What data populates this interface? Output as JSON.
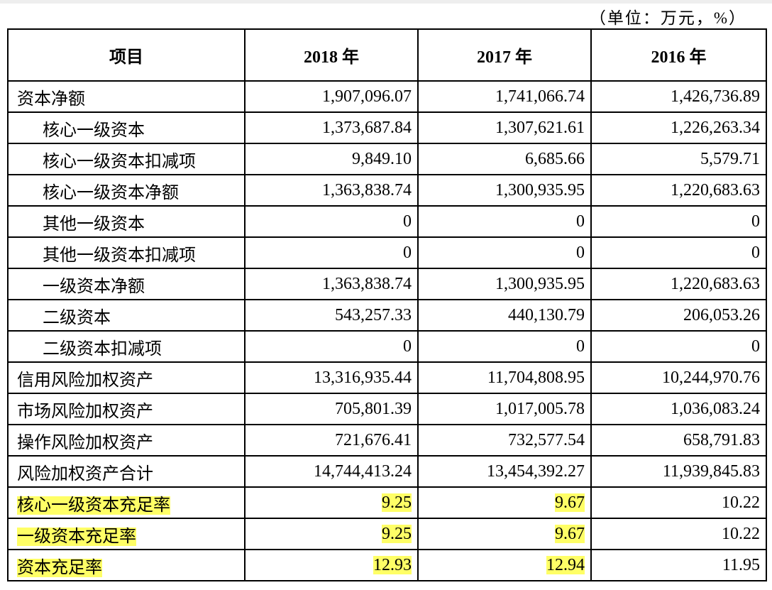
{
  "unit": "（单位：万元，%）",
  "table": {
    "header": [
      "项目",
      "2018 年",
      "2017 年",
      "2016 年"
    ],
    "rows": [
      {
        "cells": [
          "资本净额",
          "1,907,096.07",
          "1,741,066.74",
          "1,426,736.89"
        ],
        "level": 0
      },
      {
        "cells": [
          "核心一级资本",
          "1,373,687.84",
          "1,307,621.61",
          "1,226,263.34"
        ],
        "level": 1
      },
      {
        "cells": [
          "核心一级资本扣减项",
          "9,849.10",
          "6,685.66",
          "5,579.71"
        ],
        "level": 1
      },
      {
        "cells": [
          "核心一级资本净额",
          "1,363,838.74",
          "1,300,935.95",
          "1,220,683.63"
        ],
        "level": 1
      },
      {
        "cells": [
          "其他一级资本",
          "0",
          "0",
          "0"
        ],
        "level": 1
      },
      {
        "cells": [
          "其他一级资本扣减项",
          "0",
          "0",
          "0"
        ],
        "level": 1
      },
      {
        "cells": [
          "一级资本净额",
          "1,363,838.74",
          "1,300,935.95",
          "1,220,683.63"
        ],
        "level": 1
      },
      {
        "cells": [
          "二级资本",
          "543,257.33",
          "440,130.79",
          "206,053.26"
        ],
        "level": 1
      },
      {
        "cells": [
          "二级资本扣减项",
          "0",
          "0",
          "0"
        ],
        "level": 1
      },
      {
        "cells": [
          "信用风险加权资产",
          "13,316,935.44",
          "11,704,808.95",
          "10,244,970.76"
        ],
        "level": 0
      },
      {
        "cells": [
          "市场风险加权资产",
          "705,801.39",
          "1,017,005.78",
          "1,036,083.24"
        ],
        "level": 0
      },
      {
        "cells": [
          "操作风险加权资产",
          "721,676.41",
          "732,577.54",
          "658,791.83"
        ],
        "level": 0
      },
      {
        "cells": [
          "风险加权资产合计",
          "14,744,413.24",
          "13,454,392.27",
          "11,939,845.83"
        ],
        "level": 0
      },
      {
        "cells": [
          "核心一级资本充足率",
          "9.25",
          "9.67",
          "10.22"
        ],
        "level": 0,
        "highlight": [
          true,
          true,
          true,
          false
        ]
      },
      {
        "cells": [
          "一级资本充足率",
          "9.25",
          "9.67",
          "10.22"
        ],
        "level": 0,
        "highlight": [
          true,
          true,
          true,
          false
        ]
      },
      {
        "cells": [
          "资本充足率",
          "12.93",
          "12.94",
          "11.95"
        ],
        "level": 0,
        "highlight": [
          true,
          true,
          true,
          false
        ]
      }
    ]
  }
}
